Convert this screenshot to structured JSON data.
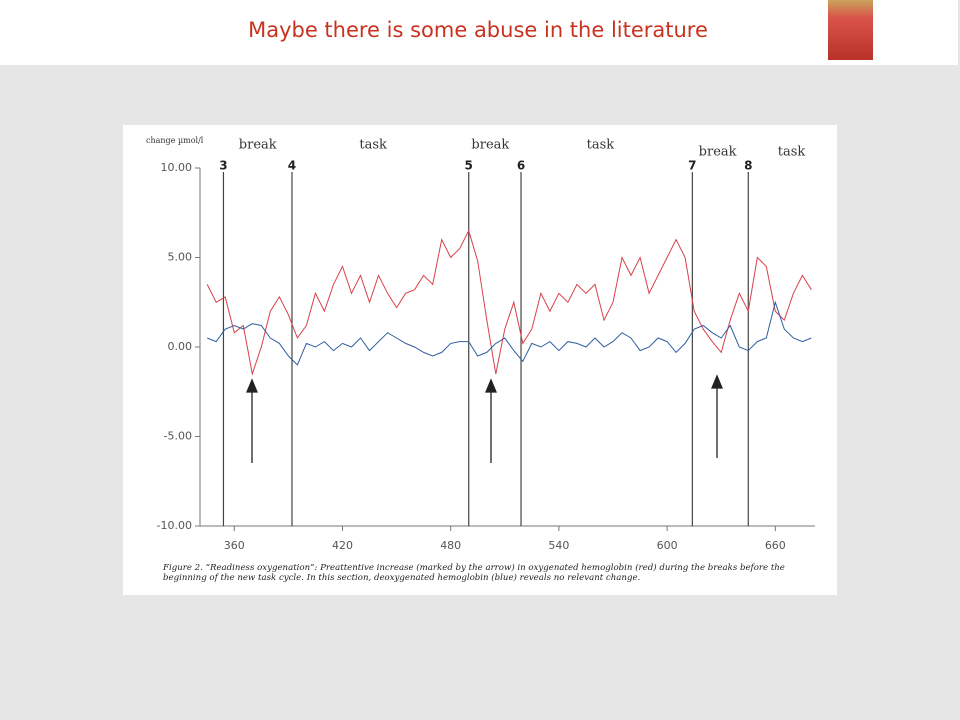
{
  "slide": {
    "title": "Maybe there is some abuse in the literature"
  },
  "chart_data": {
    "type": "line",
    "y_label": "change µmol/l",
    "caption": "Figure 2. “Readiness oxygenation”: Preattentive increase (marked by the arrow) in oxygenated hemoglobin (red) during the breaks before the beginning of the new task cycle. In this section, deoxygenated hemoglobin (blue) reveals no relevant change.",
    "x": [
      345,
      350,
      355,
      360,
      365,
      370,
      375,
      380,
      385,
      390,
      395,
      400,
      405,
      410,
      415,
      420,
      425,
      430,
      435,
      440,
      445,
      450,
      455,
      460,
      465,
      470,
      475,
      480,
      485,
      490,
      495,
      500,
      505,
      510,
      515,
      520,
      525,
      530,
      535,
      540,
      545,
      550,
      555,
      560,
      565,
      570,
      575,
      580,
      585,
      590,
      595,
      600,
      605,
      610,
      615,
      620,
      625,
      630,
      635,
      640,
      645,
      650,
      655,
      660,
      665,
      670,
      675,
      680
    ],
    "series": [
      {
        "color": "#d9404a",
        "values": [
          3.5,
          2.5,
          2.8,
          0.8,
          1.2,
          -1.5,
          0,
          2,
          2.8,
          1.8,
          0.5,
          1.2,
          3,
          2,
          3.5,
          4.5,
          3,
          4,
          2.5,
          4,
          3,
          2.2,
          3,
          3.2,
          4,
          3.5,
          6,
          5,
          5.5,
          6.5,
          4.8,
          1.5,
          -1.5,
          1,
          2.5,
          0.2,
          1,
          3,
          2,
          3,
          2.5,
          3.5,
          3,
          3.5,
          1.5,
          2.5,
          5,
          4,
          5,
          3,
          4,
          5,
          6,
          5,
          2,
          1,
          0.3,
          -0.3,
          1.5,
          3,
          2,
          5,
          4.5,
          2,
          1.5,
          3,
          4,
          3.2
        ]
      },
      {
        "color": "#2f5f9e",
        "values": [
          0.5,
          0.3,
          1,
          1.2,
          1,
          1.3,
          1.2,
          0.5,
          0.2,
          -0.5,
          -1,
          0.2,
          0,
          0.3,
          -0.2,
          0.2,
          0,
          0.5,
          -0.2,
          0.3,
          0.8,
          0.5,
          0.2,
          0,
          -0.3,
          -0.5,
          -0.3,
          0.2,
          0.3,
          0.3,
          -0.5,
          -0.3,
          0.2,
          0.5,
          -0.2,
          -0.8,
          0.2,
          0,
          0.3,
          -0.2,
          0.3,
          0.2,
          0,
          0.5,
          0,
          0.3,
          0.8,
          0.5,
          -0.2,
          0,
          0.5,
          0.3,
          -0.3,
          0.2,
          1,
          1.2,
          0.8,
          0.5,
          1.2,
          0,
          -0.2,
          0.3,
          0.5,
          2.5,
          1,
          0.5,
          0.3,
          0.5
        ]
      }
    ],
    "xlim": [
      341,
      682
    ],
    "xticks": [
      360,
      420,
      480,
      540,
      600,
      660
    ],
    "ylim": [
      -10,
      10
    ],
    "yticks": [
      {
        "value": -10,
        "label": "-10.00"
      },
      {
        "value": -5,
        "label": "-5.00"
      },
      {
        "value": 0,
        "label": "0.00"
      },
      {
        "value": 5,
        "label": "5.00"
      },
      {
        "value": 10,
        "label": "10.00"
      }
    ],
    "markers": [
      {
        "label": "3",
        "x": 354
      },
      {
        "label": "4",
        "x": 392
      },
      {
        "label": "5",
        "x": 490
      },
      {
        "label": "6",
        "x": 519
      },
      {
        "label": "7",
        "x": 614
      },
      {
        "label": "8",
        "x": 645
      }
    ],
    "annotations": [
      {
        "text": "break",
        "x": 373
      },
      {
        "text": "task",
        "x": 437
      },
      {
        "text": "break",
        "x": 502
      },
      {
        "text": "task",
        "x": 563
      },
      {
        "text": "break",
        "x": 628
      },
      {
        "text": "task",
        "x": 669
      }
    ]
  }
}
